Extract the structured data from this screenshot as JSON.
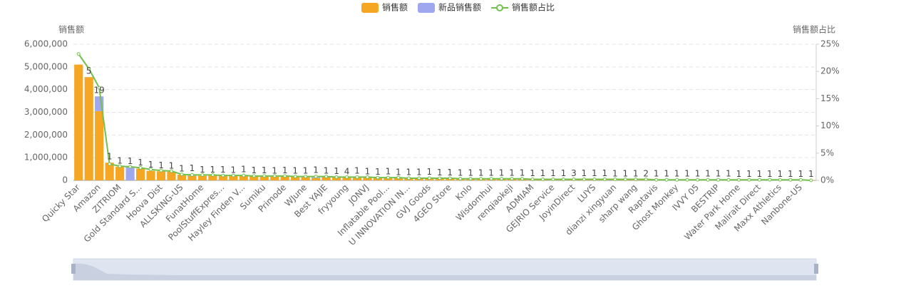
{
  "chart_data": {
    "type": "bar",
    "y_label": "销售额",
    "y2_label": "销售额占比",
    "categories": [
      "Quicky Star",
      null,
      "Amazon",
      null,
      "ZITRIOM",
      null,
      "Gold Standard S...",
      null,
      "Hoova Dist",
      null,
      "ALLSKING-US",
      null,
      "FunatHome",
      null,
      "PoolStuffExpres...",
      null,
      "Hayley Finden V...",
      null,
      "Sumiku",
      null,
      "Primode",
      null,
      "WJune",
      null,
      "Best YAJIE",
      null,
      "fryyoung",
      null,
      "JONVJ",
      null,
      "Inflatable Pool...",
      null,
      "U INNOVATION IN...",
      null,
      "GVJ Goods",
      null,
      "4GEO Store",
      null,
      "Knlo",
      null,
      "Wisdomhui",
      null,
      "renqiaokeji",
      null,
      "ADMIAM",
      null,
      "GEJRIO Service",
      null,
      "JoyinDirect",
      null,
      "LUYS",
      null,
      "dianzi xingyuan",
      null,
      "sharp wang",
      null,
      "Raptavis",
      null,
      "Ghost Monkey",
      null,
      "IVVY 05",
      null,
      "BESTRIP",
      null,
      "Water Park Home",
      null,
      "Malirait Direct",
      null,
      "Maxx Athletics",
      null,
      "Nanbone-US",
      null
    ],
    "series": [
      {
        "name": "销售额",
        "color": "#f5a623",
        "values": [
          5100000,
          4550000,
          3050000,
          780000,
          600000,
          0,
          520000,
          420000,
          400000,
          380000,
          250000,
          200000,
          200000,
          210000,
          200000,
          190000,
          190000,
          180000,
          170000,
          160000,
          170000,
          160000,
          150000,
          100000,
          150000,
          140000,
          130000,
          110000,
          120000,
          110000,
          100000,
          95000,
          90000,
          90000,
          85000,
          80000,
          75000,
          70000,
          70000,
          65000,
          60000,
          60000,
          55000,
          55000,
          50000,
          50000,
          48000,
          45000,
          45000,
          42000,
          40000,
          40000,
          38000,
          36000,
          35000,
          34000,
          32000,
          30000,
          30000,
          28000,
          27000,
          26000,
          25000,
          24000,
          23000,
          22000,
          21000,
          20000,
          19000,
          18000,
          15000,
          12000
        ]
      },
      {
        "name": "新品销售额",
        "color": "#9fa8ee",
        "values": [
          0,
          0,
          650000,
          0,
          0,
          580000,
          0,
          0,
          0,
          0,
          0,
          70000,
          0,
          0,
          0,
          0,
          30000,
          0,
          0,
          0,
          0,
          0,
          0,
          90000,
          0,
          0,
          0,
          40000,
          0,
          0,
          30000,
          0,
          0,
          0,
          20000,
          0,
          0,
          0,
          0,
          0,
          0,
          0,
          0,
          0,
          0,
          0,
          0,
          0,
          0,
          0,
          0,
          0,
          0,
          0,
          0,
          0,
          0,
          0,
          0,
          0,
          0,
          0,
          0,
          0,
          0,
          0,
          0,
          0,
          0,
          0,
          0,
          0
        ]
      },
      {
        "name": "销售额占比",
        "color": "#73c04d",
        "type": "line",
        "axis": "y2",
        "values": [
          23.2,
          20.5,
          17.0,
          3.0,
          2.6,
          2.5,
          2.3,
          2.0,
          1.8,
          1.7,
          1.1,
          1.0,
          1.0,
          1.0,
          0.9,
          0.9,
          0.9,
          0.8,
          0.8,
          0.8,
          0.8,
          0.7,
          0.7,
          0.7,
          0.7,
          0.6,
          0.6,
          0.6,
          0.6,
          0.5,
          0.5,
          0.5,
          0.4,
          0.4,
          0.4,
          0.4,
          0.4,
          0.3,
          0.3,
          0.3,
          0.3,
          0.3,
          0.3,
          0.3,
          0.2,
          0.2,
          0.2,
          0.2,
          0.2,
          0.2,
          0.2,
          0.2,
          0.2,
          0.2,
          0.2,
          0.2,
          0.1,
          0.1,
          0.1,
          0.1,
          0.1,
          0.1,
          0.1,
          0.1,
          0.1,
          0.1,
          0.1,
          0.1,
          0.1,
          0.1,
          0.1,
          0.0
        ]
      }
    ],
    "bar_labels": [
      null,
      5,
      19,
      1,
      1,
      1,
      1,
      1,
      1,
      1,
      1,
      1,
      1,
      1,
      1,
      1,
      1,
      1,
      1,
      1,
      1,
      1,
      1,
      1,
      1,
      1,
      4,
      1,
      1,
      1,
      1,
      1,
      1,
      1,
      1,
      1,
      1,
      1,
      1,
      1,
      1,
      1,
      1,
      1,
      1,
      1,
      1,
      1,
      3,
      1,
      1,
      1,
      1,
      1,
      1,
      2,
      1,
      1,
      1,
      1,
      1,
      1,
      1,
      1,
      1,
      1,
      1,
      1,
      1,
      1,
      1,
      1
    ],
    "ylim": [
      0,
      6000000
    ],
    "yticks": [
      0,
      {
        "value": 1000000,
        "label": "1,000,000"
      },
      {
        "value": 2000000,
        "label": "2,000,000"
      },
      {
        "value": 3000000,
        "label": "3,000,000"
      },
      {
        "value": 4000000,
        "label": "4,000,000"
      },
      {
        "value": 5000000,
        "label": "5,000,000"
      },
      {
        "value": 6000000,
        "label": "6,000,000"
      }
    ],
    "y2lim": [
      0,
      25
    ],
    "y2ticks": [
      {
        "value": 0,
        "label": "0%"
      },
      {
        "value": 5,
        "label": "5%"
      },
      {
        "value": 10,
        "label": "10%"
      },
      {
        "value": 15,
        "label": "15%"
      },
      {
        "value": 20,
        "label": "20%"
      },
      {
        "value": 25,
        "label": "25%"
      }
    ],
    "grid": true,
    "stacked": true,
    "legend": "top"
  }
}
